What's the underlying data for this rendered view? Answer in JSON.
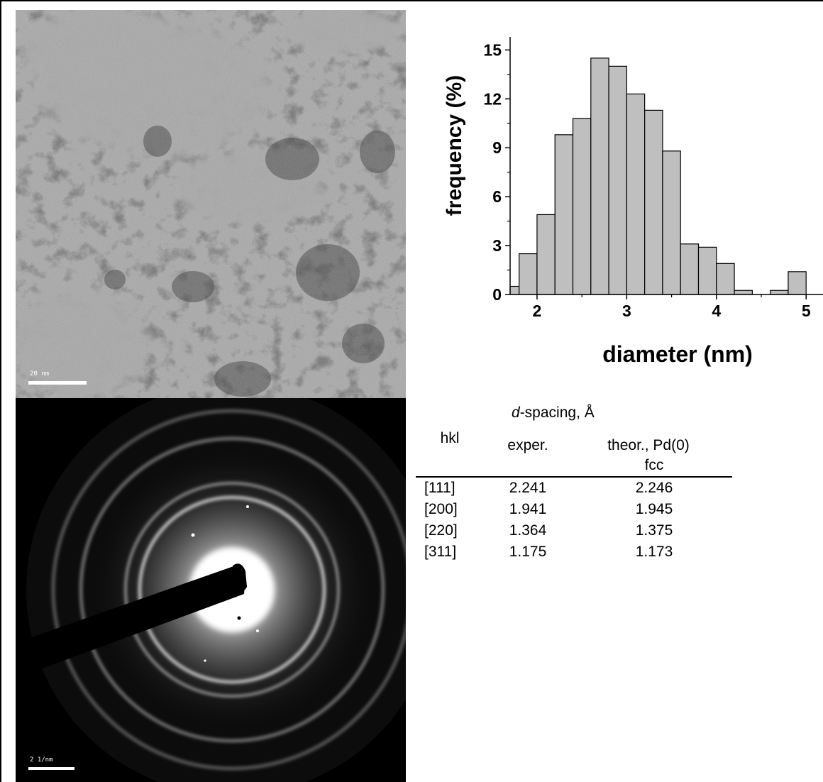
{
  "micrograph": {
    "scale_label": "20 nm"
  },
  "diffraction": {
    "scale_label": "2 1/nm"
  },
  "chart_data": {
    "type": "bar",
    "xlabel": "diameter (nm)",
    "ylabel": "frequency (%)",
    "xlim": [
      1.7,
      5.2
    ],
    "ylim": [
      0,
      15.8
    ],
    "xticks": [
      "2",
      "3",
      "4",
      "5"
    ],
    "yticks": [
      "0",
      "3",
      "6",
      "9",
      "12",
      "15"
    ],
    "bin_width": 0.2,
    "bin_starts": [
      1.6,
      1.8,
      2.0,
      2.2,
      2.4,
      2.6,
      2.8,
      3.0,
      3.2,
      3.4,
      3.6,
      3.8,
      4.0,
      4.2,
      4.4,
      4.6,
      4.8,
      5.0
    ],
    "values": [
      0.5,
      2.5,
      4.9,
      9.8,
      10.8,
      14.5,
      14.0,
      12.3,
      11.3,
      8.8,
      3.1,
      2.9,
      1.9,
      0.25,
      0.0,
      0.25,
      1.4,
      0.0
    ],
    "bar_color": "#bfbfbf"
  },
  "table": {
    "group_header_italic": "d",
    "group_header_rest": "-spacing, Å",
    "col_hkl": "hkl",
    "col_exper": "exper.",
    "col_theor_line1": "theor., Pd(0)",
    "col_theor_line2": "fcc",
    "rows": [
      {
        "hkl": "[111]",
        "exper": "2.241",
        "theor": "2.246"
      },
      {
        "hkl": "[200]",
        "exper": "1.941",
        "theor": "1.945"
      },
      {
        "hkl": "[220]",
        "exper": "1.364",
        "theor": "1.375"
      },
      {
        "hkl": "[311]",
        "exper": "1.175",
        "theor": "1.173"
      }
    ]
  }
}
